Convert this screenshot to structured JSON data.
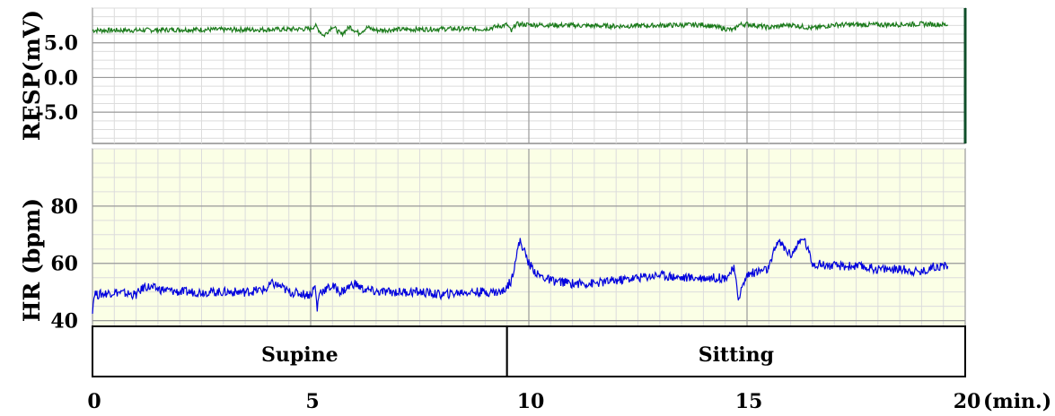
{
  "chart_data": [
    {
      "type": "line",
      "ylabel": "RESP(mV)",
      "yticks": [
        "5.0",
        "0.0",
        "-5.0"
      ],
      "ytick_values": [
        5,
        0,
        -5
      ],
      "ylim": [
        -9.5,
        10
      ],
      "xlim": [
        0,
        20
      ],
      "grid": true,
      "background": "#ffffff",
      "series": [
        {
          "color": "#1a7a1a",
          "x": [
            0,
            1,
            2,
            3,
            4,
            5,
            5.1,
            5.3,
            5.5,
            5.7,
            5.9,
            6.1,
            6.3,
            6.5,
            7,
            8,
            9,
            9.5,
            9.6,
            9.7,
            10,
            11,
            12,
            13,
            14,
            14.7,
            14.8,
            15,
            15.5,
            16,
            16.5,
            17,
            18,
            19,
            19.6
          ],
          "y": [
            6.8,
            6.8,
            6.9,
            6.9,
            6.9,
            7.0,
            7.5,
            6.0,
            7.4,
            6.2,
            7.3,
            6.4,
            7.2,
            6.8,
            6.9,
            7.0,
            7.0,
            7.6,
            6.6,
            7.7,
            7.6,
            7.5,
            7.4,
            7.5,
            7.6,
            6.8,
            7.6,
            7.7,
            7.2,
            7.6,
            7.1,
            7.6,
            7.6,
            7.7,
            7.6
          ]
        }
      ]
    },
    {
      "type": "line",
      "ylabel": "HR (bpm)",
      "yticks": [
        "80",
        "60",
        "40"
      ],
      "ytick_values": [
        80,
        60,
        40
      ],
      "ylim": [
        38,
        100
      ],
      "xlim": [
        0,
        20
      ],
      "grid": true,
      "background": "#fbffe6",
      "series": [
        {
          "color": "#0000dd",
          "x": [
            0,
            0.05,
            0.1,
            0.5,
            1,
            1.2,
            1.5,
            2,
            2.5,
            3,
            3.5,
            4,
            4.1,
            4.3,
            4.5,
            5,
            5.1,
            5.15,
            5.2,
            5.5,
            5.7,
            6,
            6.2,
            6.5,
            7,
            7.5,
            8,
            8.5,
            9,
            9.4,
            9.6,
            9.7,
            9.8,
            10.0,
            10.2,
            10.5,
            11,
            11.5,
            12,
            12.5,
            13,
            13.5,
            14,
            14.5,
            14.7,
            14.8,
            15,
            15.2,
            15.5,
            15.7,
            16,
            16.3,
            16.5,
            17,
            17.5,
            18,
            18.5,
            19,
            19.3,
            19.6
          ],
          "y": [
            44,
            50,
            49,
            50,
            49,
            52,
            51,
            50,
            50,
            50,
            50,
            51,
            53,
            52,
            50,
            49,
            52,
            44,
            50,
            52,
            50,
            53,
            51,
            50,
            50,
            50,
            49,
            50,
            50,
            50,
            54,
            62,
            68,
            60,
            56,
            54,
            53,
            53,
            54,
            55,
            56,
            55,
            55,
            55,
            58,
            48,
            56,
            57,
            58,
            68,
            63,
            69,
            60,
            59,
            59,
            58,
            58,
            57,
            59,
            59
          ]
        }
      ]
    }
  ],
  "phases": [
    {
      "label": "Supine",
      "start": 0,
      "end": 9.5
    },
    {
      "label": "Sitting",
      "start": 9.5,
      "end": 20
    }
  ],
  "xaxis": {
    "ticks": [
      "0",
      "5",
      "10",
      "15",
      "20"
    ],
    "tick_values": [
      0,
      5,
      10,
      15,
      20
    ],
    "unit": "(min.)"
  },
  "colors": {
    "resp_line": "#1a7a1a",
    "hr_line": "#0000dd",
    "hr_background": "#fbffe6",
    "resp_edge": "#0f4f2a"
  }
}
